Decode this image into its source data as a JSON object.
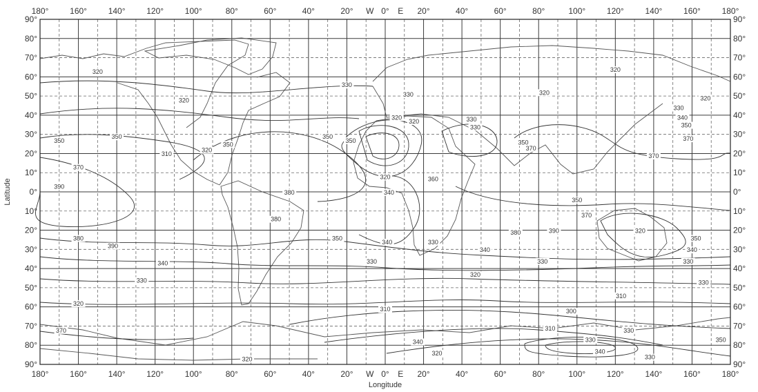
{
  "map": {
    "x_axis_title": "Longitude",
    "y_axis_title": "Latitude",
    "top_ticks": [
      "180°",
      "160°",
      "140°",
      "120°",
      "100°",
      "80°",
      "60°",
      "40°",
      "20°",
      "0°",
      "20°",
      "40°",
      "60°",
      "80°",
      "100°",
      "120°",
      "140°",
      "160°",
      "180°"
    ],
    "bottom_ticks": [
      "180°",
      "160°",
      "140°",
      "120°",
      "100°",
      "80°",
      "60°",
      "40°",
      "20°",
      "0°",
      "20°",
      "40°",
      "60°",
      "80°",
      "100°",
      "120°",
      "140°",
      "160°",
      "180°"
    ],
    "hemisphere_labels": {
      "west": "W",
      "east": "E"
    },
    "left_ticks": [
      "90°",
      "80°",
      "70°",
      "60°",
      "50°",
      "40°",
      "30°",
      "20°",
      "10°",
      "0°",
      "10°",
      "20°",
      "30°",
      "40°",
      "50°",
      "60°",
      "70°",
      "80°",
      "90°"
    ],
    "right_ticks": [
      "90°",
      "80°",
      "70°",
      "60°",
      "50°",
      "40°",
      "30°",
      "20°",
      "10°",
      "0°",
      "10°",
      "20°",
      "30°",
      "40°",
      "50°",
      "60°",
      "70°",
      "80°",
      "90°"
    ],
    "contour_labels": [
      {
        "text": "320",
        "lon": -150,
        "lat": 62
      },
      {
        "text": "320",
        "lon": -105,
        "lat": 47
      },
      {
        "text": "330",
        "lon": -20,
        "lat": 55
      },
      {
        "text": "330",
        "lon": 12,
        "lat": 50
      },
      {
        "text": "320",
        "lon": 120,
        "lat": 63
      },
      {
        "text": "320",
        "lon": 167,
        "lat": 48
      },
      {
        "text": "320",
        "lon": 83,
        "lat": 51
      },
      {
        "text": "330",
        "lon": 153,
        "lat": 43
      },
      {
        "text": "340",
        "lon": 155,
        "lat": 38
      },
      {
        "text": "350",
        "lon": 157,
        "lat": 34
      },
      {
        "text": "370",
        "lon": 158,
        "lat": 27
      },
      {
        "text": "350",
        "lon": -170,
        "lat": 26
      },
      {
        "text": "350",
        "lon": -140,
        "lat": 28
      },
      {
        "text": "370",
        "lon": -160,
        "lat": 12
      },
      {
        "text": "390",
        "lon": -170,
        "lat": 2
      },
      {
        "text": "310",
        "lon": -114,
        "lat": 19
      },
      {
        "text": "320",
        "lon": -93,
        "lat": 21
      },
      {
        "text": "350",
        "lon": -82,
        "lat": 24
      },
      {
        "text": "350",
        "lon": -30,
        "lat": 28
      },
      {
        "text": "350",
        "lon": -18,
        "lat": 26
      },
      {
        "text": "320",
        "lon": 6,
        "lat": 38
      },
      {
        "text": "320",
        "lon": 15,
        "lat": 36
      },
      {
        "text": "330",
        "lon": 45,
        "lat": 37
      },
      {
        "text": "330",
        "lon": 47,
        "lat": 33
      },
      {
        "text": "350",
        "lon": 72,
        "lat": 25
      },
      {
        "text": "370",
        "lon": 76,
        "lat": 22
      },
      {
        "text": "370",
        "lon": 140,
        "lat": 18
      },
      {
        "text": "320",
        "lon": 0,
        "lat": 7
      },
      {
        "text": "340",
        "lon": 2,
        "lat": -1
      },
      {
        "text": "360",
        "lon": 25,
        "lat": 6
      },
      {
        "text": "380",
        "lon": -50,
        "lat": -1
      },
      {
        "text": "350",
        "lon": 100,
        "lat": -5
      },
      {
        "text": "370",
        "lon": 105,
        "lat": -13
      },
      {
        "text": "380",
        "lon": -57,
        "lat": -15
      },
      {
        "text": "380",
        "lon": 68,
        "lat": -22
      },
      {
        "text": "390",
        "lon": 88,
        "lat": -21
      },
      {
        "text": "320",
        "lon": 133,
        "lat": -21
      },
      {
        "text": "350",
        "lon": 162,
        "lat": -25
      },
      {
        "text": "340",
        "lon": 160,
        "lat": -31
      },
      {
        "text": "380",
        "lon": -160,
        "lat": -25
      },
      {
        "text": "390",
        "lon": -142,
        "lat": -29
      },
      {
        "text": "350",
        "lon": -25,
        "lat": -25
      },
      {
        "text": "340",
        "lon": 1,
        "lat": -27
      },
      {
        "text": "330",
        "lon": 25,
        "lat": -27
      },
      {
        "text": "340",
        "lon": 52,
        "lat": -31
      },
      {
        "text": "340",
        "lon": -116,
        "lat": -38
      },
      {
        "text": "330",
        "lon": -7,
        "lat": -37
      },
      {
        "text": "330",
        "lon": 82,
        "lat": -37
      },
      {
        "text": "330",
        "lon": 158,
        "lat": -37
      },
      {
        "text": "320",
        "lon": 47,
        "lat": -44
      },
      {
        "text": "330",
        "lon": -127,
        "lat": -47
      },
      {
        "text": "330",
        "lon": 166,
        "lat": -48
      },
      {
        "text": "310",
        "lon": 123,
        "lat": -55
      },
      {
        "text": "320",
        "lon": -160,
        "lat": -59
      },
      {
        "text": "310",
        "lon": 0,
        "lat": -62
      },
      {
        "text": "300",
        "lon": 97,
        "lat": -63
      },
      {
        "text": "310",
        "lon": 86,
        "lat": -72
      },
      {
        "text": "330",
        "lon": 127,
        "lat": -73
      },
      {
        "text": "370",
        "lon": -169,
        "lat": -73
      },
      {
        "text": "340",
        "lon": 17,
        "lat": -79
      },
      {
        "text": "350",
        "lon": 175,
        "lat": -78
      },
      {
        "text": "330",
        "lon": 107,
        "lat": -78
      },
      {
        "text": "340",
        "lon": 112,
        "lat": -84
      },
      {
        "text": "320",
        "lon": 27,
        "lat": -85
      },
      {
        "text": "330",
        "lon": 138,
        "lat": -87
      },
      {
        "text": "320",
        "lon": -72,
        "lat": -88
      }
    ]
  }
}
